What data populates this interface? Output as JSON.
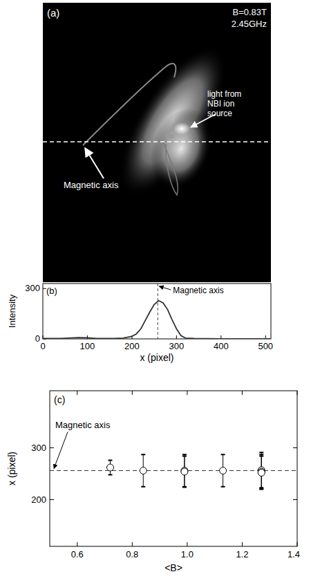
{
  "chart_data": [
    {
      "type": "image",
      "title": "(a)",
      "annotations": [
        "B=0.83T",
        "2.45GHz",
        "light from NBI ion source",
        "Magnetic axis"
      ]
    },
    {
      "type": "line",
      "title": "(b)",
      "x_label": "x (pixel)",
      "y_label": "Intensity",
      "x": [
        0,
        40,
        80,
        100,
        120,
        160,
        180,
        200,
        210,
        220,
        230,
        240,
        250,
        260,
        270,
        280,
        290,
        300,
        310,
        320,
        340,
        400,
        450,
        512
      ],
      "values": [
        2,
        3,
        8,
        6,
        3,
        2,
        5,
        15,
        30,
        60,
        110,
        160,
        205,
        228,
        215,
        175,
        115,
        60,
        20,
        5,
        2,
        1,
        1,
        1
      ],
      "color": "#333333",
      "xlim": [
        0,
        512
      ],
      "xticks": [
        0,
        100,
        200,
        300,
        400,
        500
      ],
      "ylim": [
        0,
        330
      ],
      "yticks": [
        0,
        300
      ],
      "axis_x": 258,
      "annotations": [
        "Magnetic axis"
      ]
    },
    {
      "type": "scatter",
      "title": "(c)",
      "x_label": "<B>",
      "y_label": "x (pixel)",
      "x": [
        0.72,
        0.84,
        0.99,
        0.99,
        1.13,
        1.27,
        1.27,
        1.27
      ],
      "y": [
        262,
        256,
        256,
        254,
        256,
        257,
        254,
        252
      ],
      "error": [
        14,
        31,
        31,
        30,
        31,
        34,
        33,
        32
      ],
      "marker": "circle",
      "xlim": [
        0.5,
        1.4
      ],
      "xticks": [
        0.6,
        0.8,
        {
          "value": 1,
          "label": "1.0"
        },
        1.2,
        1.4
      ],
      "ylim": [
        110,
        410
      ],
      "yticks": [
        200,
        300
      ],
      "axis_y": 256,
      "annotations": [
        "Magnetic axis"
      ]
    }
  ]
}
